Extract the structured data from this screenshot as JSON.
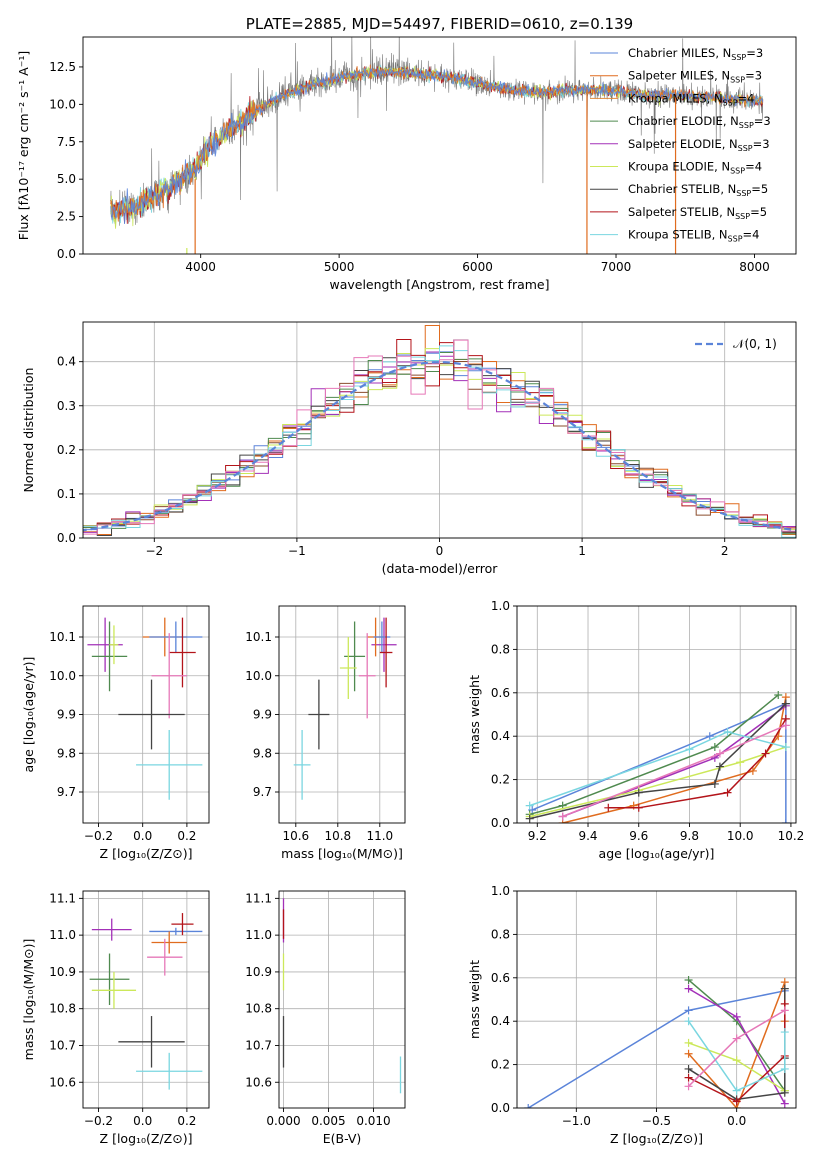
{
  "figure_title": "PLATE=2885, MJD=54497, FIBERID=0610, z=0.139",
  "colors": {
    "Chabrier MILES": "#5b84d9",
    "Salpeter MILES": "#e06c1f",
    "Kroupa MILES": "#8a4c2c",
    "Chabrier ELODIE": "#4f8a4f",
    "Salpeter ELODIE": "#a330b8",
    "Kroupa ELODIE": "#cce85a",
    "Chabrier STELIB": "#444444",
    "Salpeter STELIB": "#b3141a",
    "Kroupa STELIB": "#7ad6e0",
    "pink": "#e678b8",
    "normal_curve": "#5b84d9"
  },
  "chart_data": [
    {
      "id": "spectrum",
      "type": "line",
      "title": "PLATE=2885, MJD=54497, FIBERID=0610, z=0.139",
      "xlabel": "wavelength [Angstrom, rest frame]",
      "ylabel": "Flux [fλ10⁻¹⁷ erg cm⁻² s⁻¹ A⁻¹]",
      "xlim": [
        3150,
        8300
      ],
      "ylim": [
        0,
        14.5
      ],
      "xticks": [
        4000,
        5000,
        6000,
        7000,
        8000
      ],
      "xtick_labels": [
        "4000",
        "5000",
        "6000",
        "7000",
        "8000"
      ],
      "yticks": [
        0,
        2.5,
        5,
        7.5,
        10,
        12.5
      ],
      "ytick_labels": [
        "0.0",
        "2.5",
        "5.0",
        "7.5",
        "10.0",
        "12.5"
      ],
      "grid": false,
      "legend_position": "top-right",
      "legend": [
        {
          "label": "Chabrier MILES, N",
          "sub": "SSP",
          "suffix": "=3",
          "color": "#5b84d9"
        },
        {
          "label": "Salpeter MILES, N",
          "sub": "SSP",
          "suffix": "=3",
          "color": "#e06c1f"
        },
        {
          "label": "Kroupa MILES, N",
          "sub": "SSP",
          "suffix": "=4",
          "color": "#e08a3a"
        },
        {
          "label": "Chabrier ELODIE, N",
          "sub": "SSP",
          "suffix": "=3",
          "color": "#4f8a4f"
        },
        {
          "label": "Salpeter ELODIE, N",
          "sub": "SSP",
          "suffix": "=3",
          "color": "#a330b8"
        },
        {
          "label": "Kroupa ELODIE, N",
          "sub": "SSP",
          "suffix": "=4",
          "color": "#cce85a"
        },
        {
          "label": "Chabrier STELIB, N",
          "sub": "SSP",
          "suffix": "=5",
          "color": "#444444"
        },
        {
          "label": "Salpeter STELIB, N",
          "sub": "SSP",
          "suffix": "=5",
          "color": "#b3141a"
        },
        {
          "label": "Kroupa STELIB, N",
          "sub": "SSP",
          "suffix": "=4",
          "color": "#7ad6e0"
        }
      ],
      "continuum": {
        "x": [
          3350,
          3500,
          3650,
          3800,
          3950,
          4050,
          4200,
          4400,
          4600,
          4800,
          5000,
          5200,
          5400,
          5600,
          5800,
          6000,
          6200,
          6400,
          6600,
          6800,
          7000,
          7200,
          7400,
          7600,
          7800,
          8050
        ],
        "y": [
          2.8,
          3.1,
          3.8,
          4.6,
          5.6,
          7.0,
          8.2,
          9.6,
          10.6,
          11.3,
          11.8,
          12.1,
          12.2,
          12.0,
          11.8,
          11.4,
          11.0,
          10.8,
          10.9,
          11.0,
          10.9,
          10.6,
          10.6,
          10.5,
          10.4,
          10.2
        ]
      },
      "spike_lines": [
        {
          "x": 3900,
          "ymax": 0.4,
          "color": "#cce85a"
        },
        {
          "x": 3960,
          "ymax": 5.0,
          "color": "#e06c1f"
        },
        {
          "x": 6790,
          "ymax": 11.0,
          "color": "#e06c1f"
        },
        {
          "x": 7430,
          "ymax": 11.0,
          "color": "#e06c1f"
        }
      ]
    },
    {
      "id": "residuals",
      "type": "line",
      "xlabel": "(data-model)/error",
      "ylabel": "Normed distribution",
      "xlim": [
        -2.5,
        2.5
      ],
      "ylim": [
        0,
        0.49
      ],
      "xticks": [
        -2,
        -1,
        0,
        1,
        2
      ],
      "xtick_labels": [
        "−2",
        "−1",
        "0",
        "1",
        "2"
      ],
      "yticks": [
        0,
        0.1,
        0.2,
        0.3,
        0.4
      ],
      "ytick_labels": [
        "0.0",
        "0.1",
        "0.2",
        "0.3",
        "0.4"
      ],
      "grid": true,
      "legend_position": "top-right",
      "legend": [
        {
          "label": "𝒩(0, 1)",
          "style": "dashed",
          "color": "#5b84d9"
        }
      ],
      "bin_width": 0.1,
      "series_colors": [
        "#5b84d9",
        "#e06c1f",
        "#8a4c2c",
        "#4f8a4f",
        "#a330b8",
        "#cce85a",
        "#444444",
        "#b3141a",
        "#7ad6e0",
        "#e678b8"
      ]
    },
    {
      "id": "age_vs_Z",
      "type": "scatter",
      "xlabel": "Z [log₁₀(Z/Z⊙)]",
      "ylabel": "age  [log₁₀(age/yr)]",
      "xlim": [
        -0.27,
        0.3
      ],
      "ylim": [
        9.62,
        10.18
      ],
      "xticks": [
        -0.2,
        0,
        0.2
      ],
      "xtick_labels": [
        "−0.2",
        "0.0",
        "0.2"
      ],
      "yticks": [
        9.7,
        9.8,
        9.9,
        10.0,
        10.1
      ],
      "ytick_labels": [
        "9.7",
        "9.8",
        "9.9",
        "10.0",
        "10.1"
      ],
      "grid": true,
      "points": [
        {
          "x": -0.17,
          "y": 10.08,
          "xerr": 0.08,
          "yerr": 0.07,
          "color": "#a330b8"
        },
        {
          "x": -0.15,
          "y": 10.05,
          "xerr": 0.08,
          "yerr": 0.09,
          "color": "#4f8a4f"
        },
        {
          "x": -0.13,
          "y": 10.08,
          "xerr": 0.02,
          "yerr": 0.05,
          "color": "#cce85a"
        },
        {
          "x": 0.1,
          "y": 10.1,
          "xerr": 0.1,
          "yerr": 0.05,
          "color": "#e06c1f"
        },
        {
          "x": 0.15,
          "y": 10.1,
          "xerr": 0.12,
          "yerr": 0.04,
          "color": "#5b84d9"
        },
        {
          "x": 0.18,
          "y": 10.06,
          "xerr": 0.06,
          "yerr": 0.09,
          "color": "#b3141a"
        },
        {
          "x": 0.12,
          "y": 10.0,
          "xerr": 0.08,
          "yerr": 0.11,
          "color": "#e678b8"
        },
        {
          "x": 0.04,
          "y": 9.9,
          "xerr": 0.15,
          "yerr": 0.09,
          "color": "#444444"
        },
        {
          "x": 0.12,
          "y": 9.77,
          "xerr": 0.15,
          "yerr": 0.09,
          "color": "#7ad6e0"
        }
      ]
    },
    {
      "id": "age_vs_mass",
      "type": "scatter",
      "xlabel": "mass [log₁₀(M/M⊙)]",
      "ylabel": "",
      "xlim": [
        10.52,
        11.12
      ],
      "ylim": [
        9.62,
        10.18
      ],
      "xticks": [
        10.6,
        10.8,
        11.0
      ],
      "xtick_labels": [
        "10.6",
        "10.8",
        "11.0"
      ],
      "yticks": [
        9.7,
        9.8,
        9.9,
        10.0,
        10.1
      ],
      "ytick_labels": [
        "9.7",
        "9.8",
        "9.9",
        "10.0",
        "10.1"
      ],
      "grid": true,
      "points": [
        {
          "x": 11.02,
          "y": 10.08,
          "xerr": 0.06,
          "yerr": 0.07,
          "color": "#a330b8"
        },
        {
          "x": 10.88,
          "y": 10.05,
          "xerr": 0.05,
          "yerr": 0.09,
          "color": "#4f8a4f"
        },
        {
          "x": 10.85,
          "y": 10.02,
          "xerr": 0.04,
          "yerr": 0.08,
          "color": "#cce85a"
        },
        {
          "x": 10.98,
          "y": 10.1,
          "xerr": 0.04,
          "yerr": 0.05,
          "color": "#e06c1f"
        },
        {
          "x": 11.01,
          "y": 10.1,
          "xerr": 0.04,
          "yerr": 0.04,
          "color": "#5b84d9"
        },
        {
          "x": 11.03,
          "y": 10.06,
          "xerr": 0.03,
          "yerr": 0.09,
          "color": "#b3141a"
        },
        {
          "x": 10.94,
          "y": 10.0,
          "xerr": 0.04,
          "yerr": 0.11,
          "color": "#e678b8"
        },
        {
          "x": 10.71,
          "y": 9.9,
          "xerr": 0.05,
          "yerr": 0.09,
          "color": "#444444"
        },
        {
          "x": 10.63,
          "y": 9.77,
          "xerr": 0.04,
          "yerr": 0.09,
          "color": "#7ad6e0"
        }
      ]
    },
    {
      "id": "mass_weight_vs_age",
      "type": "line",
      "xlabel": "age  [log₁₀(age/yr)]",
      "ylabel": "mass weight",
      "xlim": [
        9.12,
        10.22
      ],
      "ylim": [
        0,
        1.0
      ],
      "xticks": [
        9.2,
        9.4,
        9.6,
        9.8,
        10.0,
        10.2
      ],
      "xtick_labels": [
        "9.2",
        "9.4",
        "9.6",
        "9.8",
        "10.0",
        "10.2"
      ],
      "yticks": [
        0,
        0.2,
        0.4,
        0.6,
        0.8,
        1.0
      ],
      "ytick_labels": [
        "0.0",
        "0.2",
        "0.4",
        "0.6",
        "0.8",
        "1.0"
      ],
      "grid": true,
      "series": [
        {
          "color": "#5b84d9",
          "x": [
            9.18,
            9.88,
            10.18,
            10.18
          ],
          "y": [
            0.06,
            0.4,
            0.55,
            0.0
          ]
        },
        {
          "color": "#e06c1f",
          "x": [
            9.3,
            9.58,
            10.05,
            10.15,
            10.18
          ],
          "y": [
            0.0,
            0.08,
            0.24,
            0.4,
            0.58
          ]
        },
        {
          "color": "#4f8a4f",
          "x": [
            9.17,
            9.3,
            9.9,
            10.15
          ],
          "y": [
            0.04,
            0.08,
            0.35,
            0.59
          ]
        },
        {
          "color": "#a330b8",
          "x": [
            9.3,
            9.9,
            10.18
          ],
          "y": [
            0.03,
            0.3,
            0.54
          ]
        },
        {
          "color": "#cce85a",
          "x": [
            9.17,
            9.6,
            10.0,
            10.18
          ],
          "y": [
            0.03,
            0.15,
            0.28,
            0.35
          ]
        },
        {
          "color": "#444444",
          "x": [
            9.17,
            9.6,
            9.9,
            9.92,
            10.18
          ],
          "y": [
            0.02,
            0.14,
            0.18,
            0.26,
            0.55
          ]
        },
        {
          "color": "#b3141a",
          "x": [
            9.48,
            9.6,
            9.95,
            10.1,
            10.18
          ],
          "y": [
            0.07,
            0.07,
            0.14,
            0.32,
            0.48
          ]
        },
        {
          "color": "#7ad6e0",
          "x": [
            9.17,
            9.8,
            9.95,
            10.18
          ],
          "y": [
            0.08,
            0.34,
            0.42,
            0.35
          ]
        },
        {
          "color": "#e678b8",
          "x": [
            9.3,
            9.92,
            10.18
          ],
          "y": [
            0.03,
            0.32,
            0.45
          ]
        }
      ]
    },
    {
      "id": "mass_vs_Z",
      "type": "scatter",
      "xlabel": "Z [log₁₀(Z/Z⊙)]",
      "ylabel": "mass [log₁₀(M/M⊙)]",
      "xlim": [
        -0.27,
        0.3
      ],
      "ylim": [
        10.53,
        11.12
      ],
      "xticks": [
        -0.2,
        0,
        0.2
      ],
      "xtick_labels": [
        "−0.2",
        "0.0",
        "0.2"
      ],
      "yticks": [
        10.6,
        10.7,
        10.8,
        10.9,
        11.0,
        11.1
      ],
      "ytick_labels": [
        "10.6",
        "10.7",
        "10.8",
        "10.9",
        "11.0",
        "11.1"
      ],
      "grid": true,
      "points": [
        {
          "x": -0.14,
          "y": 11.015,
          "xerr": 0.09,
          "yerr": 0.03,
          "color": "#a330b8"
        },
        {
          "x": 0.15,
          "y": 11.01,
          "xerr": 0.12,
          "yerr": 0.01,
          "color": "#5b84d9"
        },
        {
          "x": 0.18,
          "y": 11.03,
          "xerr": 0.05,
          "yerr": 0.03,
          "color": "#b3141a"
        },
        {
          "x": 0.12,
          "y": 10.98,
          "xerr": 0.08,
          "yerr": 0.03,
          "color": "#e06c1f"
        },
        {
          "x": 0.1,
          "y": 10.94,
          "xerr": 0.08,
          "yerr": 0.05,
          "color": "#e678b8"
        },
        {
          "x": -0.15,
          "y": 10.88,
          "xerr": 0.09,
          "yerr": 0.07,
          "color": "#4f8a4f"
        },
        {
          "x": -0.13,
          "y": 10.85,
          "xerr": 0.1,
          "yerr": 0.05,
          "color": "#cce85a"
        },
        {
          "x": 0.04,
          "y": 10.71,
          "xerr": 0.15,
          "yerr": 0.07,
          "color": "#444444"
        },
        {
          "x": 0.12,
          "y": 10.63,
          "xerr": 0.15,
          "yerr": 0.05,
          "color": "#7ad6e0"
        }
      ]
    },
    {
      "id": "mass_vs_EBV",
      "type": "scatter",
      "xlabel": "E(B-V)",
      "ylabel": "",
      "xlim": [
        -0.0005,
        0.0135
      ],
      "ylim": [
        10.53,
        11.12
      ],
      "xticks": [
        0.0,
        0.005,
        0.01
      ],
      "xtick_labels": [
        "0.000",
        "0.005",
        "0.010"
      ],
      "yticks": [
        10.6,
        10.7,
        10.8,
        10.9,
        11.0,
        11.1
      ],
      "ytick_labels": [
        "10.6",
        "10.7",
        "10.8",
        "10.9",
        "11.0",
        "11.1"
      ],
      "grid": true,
      "points": [
        {
          "x": 0.0,
          "y": 11.04,
          "xerr": 0,
          "yerr": 0.06,
          "color": "#a330b8"
        },
        {
          "x": 0.0,
          "y": 11.03,
          "xerr": 0,
          "yerr": 0.04,
          "color": "#b3141a"
        },
        {
          "x": 0.0,
          "y": 10.9,
          "xerr": 0,
          "yerr": 0.05,
          "color": "#cce85a"
        },
        {
          "x": 0.0,
          "y": 10.71,
          "xerr": 0,
          "yerr": 0.07,
          "color": "#444444"
        },
        {
          "x": 0.013,
          "y": 10.62,
          "xerr": 0,
          "yerr": 0.05,
          "color": "#7ad6e0"
        }
      ]
    },
    {
      "id": "mass_weight_vs_Z",
      "type": "line",
      "xlabel": "Z [log₁₀(Z/Z⊙)]",
      "ylabel": "mass weight",
      "xlim": [
        -1.37,
        0.37
      ],
      "ylim": [
        0,
        1.0
      ],
      "xticks": [
        -1.0,
        -0.5,
        0.0
      ],
      "xtick_labels": [
        "−1.0",
        "−0.5",
        "0.0"
      ],
      "yticks": [
        0,
        0.2,
        0.4,
        0.6,
        0.8,
        1.0
      ],
      "ytick_labels": [
        "0.0",
        "0.2",
        "0.4",
        "0.6",
        "0.8",
        "1.0"
      ],
      "grid": true,
      "series": [
        {
          "color": "#5b84d9",
          "x": [
            -1.3,
            -0.3,
            0.3
          ],
          "y": [
            0.0,
            0.45,
            0.54
          ]
        },
        {
          "color": "#e06c1f",
          "x": [
            -0.3,
            0.0,
            0.3,
            0.3
          ],
          "y": [
            0.25,
            0.0,
            0.58,
            0.4
          ]
        },
        {
          "color": "#4f8a4f",
          "x": [
            -0.3,
            0.0,
            0.3
          ],
          "y": [
            0.59,
            0.4,
            0.08
          ]
        },
        {
          "color": "#a330b8",
          "x": [
            -0.3,
            0.0,
            0.3
          ],
          "y": [
            0.55,
            0.42,
            0.02
          ]
        },
        {
          "color": "#cce85a",
          "x": [
            -0.3,
            0.0,
            0.3
          ],
          "y": [
            0.3,
            0.22,
            0.08
          ]
        },
        {
          "color": "#444444",
          "x": [
            -0.3,
            0.0,
            0.3,
            0.3,
            0.3
          ],
          "y": [
            0.18,
            0.04,
            0.07,
            0.23,
            0.55
          ]
        },
        {
          "color": "#b3141a",
          "x": [
            -0.3,
            0.0,
            0.3,
            0.3
          ],
          "y": [
            0.14,
            0.03,
            0.24,
            0.48
          ]
        },
        {
          "color": "#7ad6e0",
          "x": [
            -0.3,
            0.0,
            0.3,
            0.3
          ],
          "y": [
            0.4,
            0.08,
            0.18,
            0.35
          ]
        },
        {
          "color": "#e678b8",
          "x": [
            -0.3,
            0.0,
            0.3
          ],
          "y": [
            0.1,
            0.32,
            0.45
          ]
        }
      ]
    }
  ]
}
